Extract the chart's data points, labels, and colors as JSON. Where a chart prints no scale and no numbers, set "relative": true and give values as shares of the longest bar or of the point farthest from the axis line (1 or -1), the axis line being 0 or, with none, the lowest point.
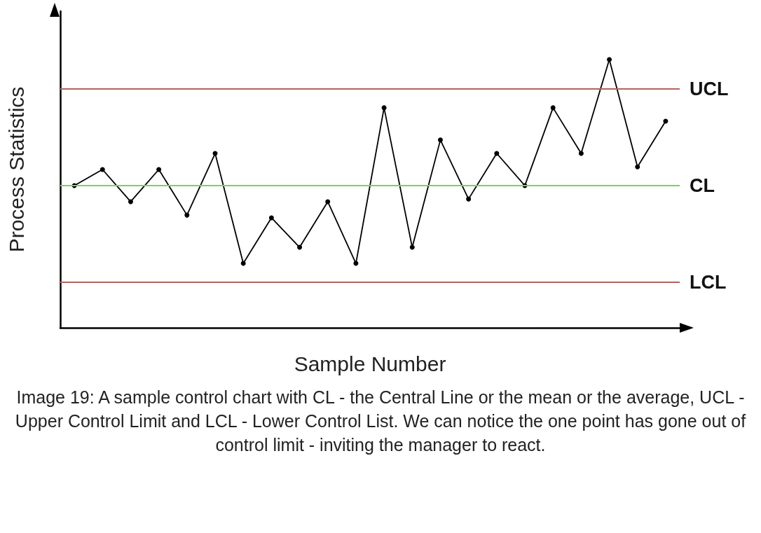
{
  "chart_data": {
    "type": "line",
    "relative": true,
    "xlabel": "Sample Number",
    "ylabel": "Process Statistics",
    "categories": [
      null,
      null,
      null,
      null,
      null,
      null,
      null,
      null,
      null,
      null,
      null,
      null,
      null,
      null,
      null,
      null,
      null,
      null,
      null,
      null,
      null,
      null
    ],
    "series": [
      {
        "color": "#000000",
        "values": [
          0.53,
          0.59,
          0.47,
          0.59,
          0.42,
          0.65,
          0.24,
          0.41,
          0.3,
          0.47,
          0.24,
          0.82,
          0.3,
          0.7,
          0.48,
          0.65,
          0.53,
          0.82,
          0.65,
          1,
          0.6,
          0.77
        ]
      }
    ],
    "marker": "circle",
    "line_style": "solid",
    "grid": false,
    "ref_lines": [
      {
        "axis": "y",
        "value": 0.887,
        "label": "UCL",
        "color": "#b5625f"
      },
      {
        "axis": "y",
        "value": 0.53,
        "label": "CL",
        "color": "#77d45a"
      },
      {
        "axis": "y",
        "value": 0.17,
        "label": "LCL",
        "color": "#b5625f"
      }
    ],
    "annotations": [
      "Image 19: A sample control chart with CL - the Central Line or the mean or the average, UCL - Upper Control Limit and LCL - Lower Control List. We can notice the one point has gone out of control limit - inviting the manager to react."
    ]
  }
}
